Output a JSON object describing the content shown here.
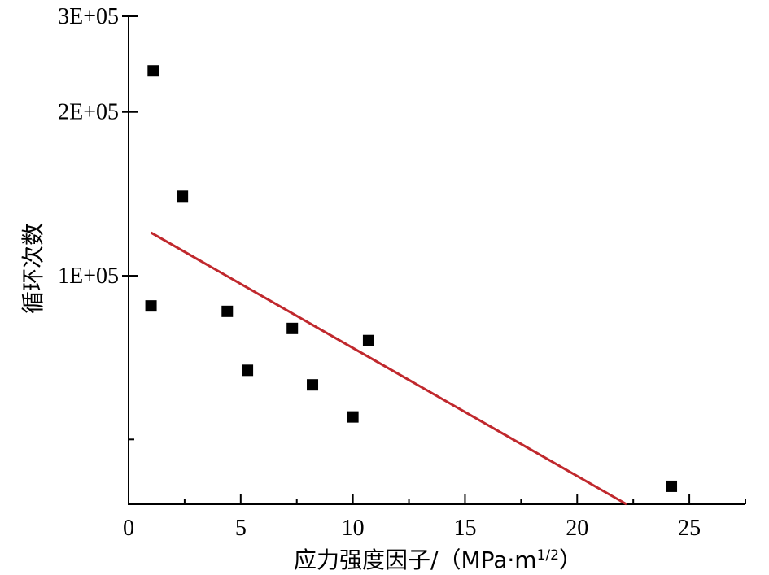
{
  "chart_data": {
    "type": "scatter",
    "title": "",
    "xlabel": "应力强度因子/（MPa·m",
    "xlabel_exponent": "1/2",
    "xlabel_close": "）",
    "ylabel": "循环次数",
    "x_scale": "linear",
    "y_scale": "log",
    "xlim": [
      0,
      27.5
    ],
    "ylim": [
      38000,
      300000
    ],
    "x_ticks": [
      0,
      5,
      10,
      15,
      20,
      25
    ],
    "x_tick_labels": [
      "0",
      "5",
      "10",
      "15",
      "20",
      "25"
    ],
    "y_labeled_ticks": [
      100000,
      200000,
      300000
    ],
    "y_tick_labels": [
      "1E+05",
      "2E+05",
      "3E+05"
    ],
    "y_minor_ticks": [
      50000
    ],
    "grid": false,
    "legend": "none",
    "series": [
      {
        "kind": "points",
        "marker": "square",
        "color": "#000000",
        "points": [
          {
            "x": 1.1,
            "y": 238000
          },
          {
            "x": 2.4,
            "y": 140000
          },
          {
            "x": 1.0,
            "y": 88000
          },
          {
            "x": 4.4,
            "y": 86000
          },
          {
            "x": 5.3,
            "y": 67000
          },
          {
            "x": 7.3,
            "y": 80000
          },
          {
            "x": 8.2,
            "y": 63000
          },
          {
            "x": 10.0,
            "y": 55000
          },
          {
            "x": 10.7,
            "y": 76000
          },
          {
            "x": 24.2,
            "y": 41000
          }
        ]
      },
      {
        "kind": "trendline",
        "color": "#c0282d",
        "points": [
          {
            "x": 1.0,
            "y": 120000
          },
          {
            "x": 22.2,
            "y": 38000
          }
        ]
      }
    ]
  }
}
